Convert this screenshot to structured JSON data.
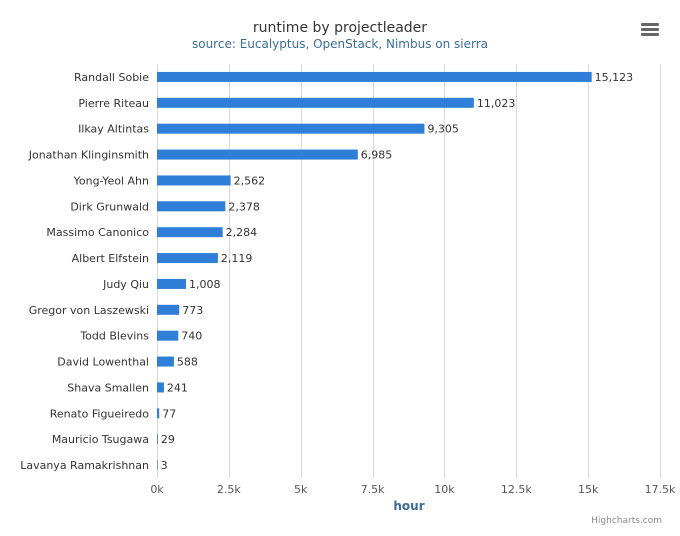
{
  "chart_data": {
    "type": "bar",
    "orientation": "horizontal",
    "title": "runtime by projectleader",
    "subtitle": "source: Eucalyptus, OpenStack, Nimbus on sierra",
    "xlabel": "hour",
    "categories": [
      "Randall Sobie",
      "Pierre Riteau",
      "Ilkay Altintas",
      "Jonathan Klinginsmith",
      "Yong-Yeol Ahn",
      "Dirk Grunwald",
      "Massimo Canonico",
      "Albert Elfstein",
      "Judy Qiu",
      "Gregor von Laszewski",
      "Todd Blevins",
      "David Lowenthal",
      "Shava Smallen",
      "Renato Figueiredo",
      "Mauricio Tsugawa",
      "Lavanya Ramakrishnan"
    ],
    "values": [
      15123,
      11023,
      9305,
      6985,
      2562,
      2378,
      2284,
      2119,
      1008,
      773,
      740,
      588,
      241,
      77,
      29,
      3
    ],
    "data_labels": [
      "15,123",
      "11,023",
      "9,305",
      "6,985",
      "2,562",
      "2,378",
      "2,284",
      "2,119",
      "1,008",
      "773",
      "740",
      "588",
      "241",
      "77",
      "29",
      "3"
    ],
    "xlim": [
      0,
      17500
    ],
    "ticks": [
      0,
      2500,
      5000,
      7500,
      10000,
      12500,
      15000,
      17500
    ],
    "tick_labels": [
      "0k",
      "2.5k",
      "5k",
      "7.5k",
      "10k",
      "12.5k",
      "15k",
      "17.5k"
    ],
    "grid": true,
    "legend": "none",
    "bar_color": "#2f7ed8"
  },
  "credits": "Highcharts.com",
  "menu": {
    "icon": "menu-icon"
  }
}
